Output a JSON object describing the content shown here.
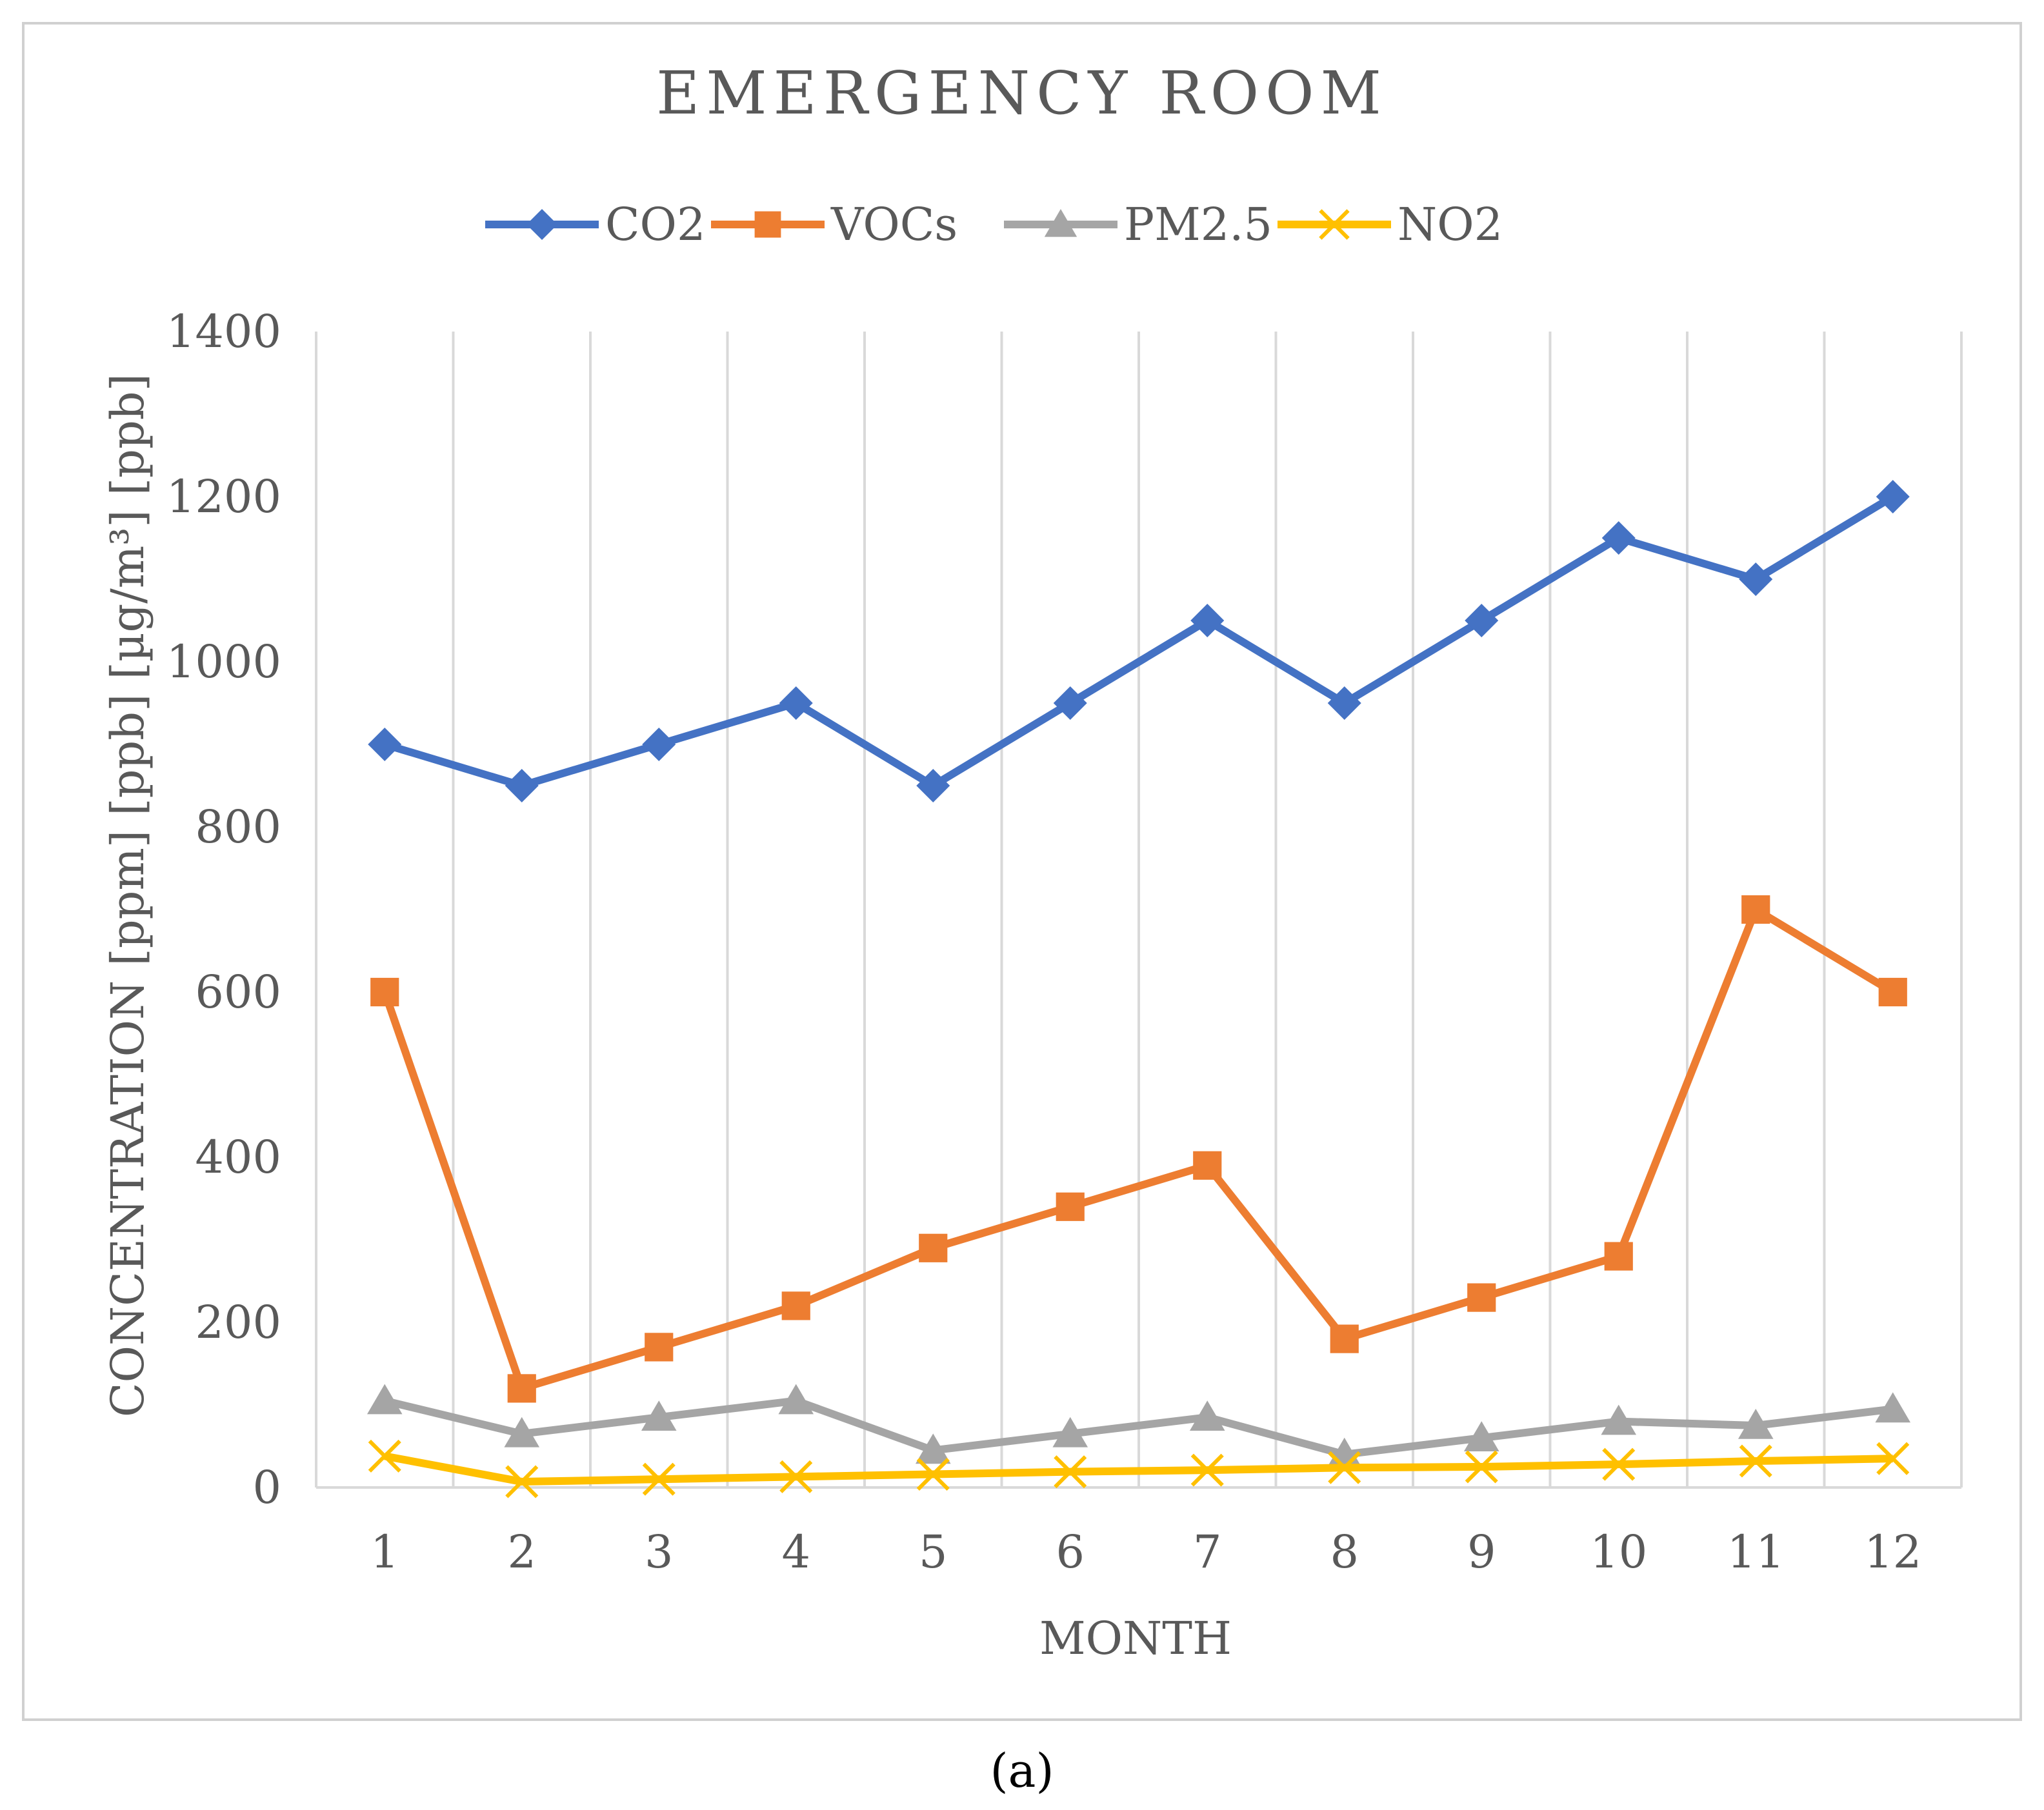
{
  "chart_data": {
    "type": "line",
    "title": "EMERGENCY ROOM",
    "xlabel": "MONTH",
    "ylabel": "CONCENTRATION [ppm] [ppb] [µg/m³] [ppb]",
    "categories": [
      "1",
      "2",
      "3",
      "4",
      "5",
      "6",
      "7",
      "8",
      "9",
      "10",
      "11",
      "12"
    ],
    "ylim": [
      0,
      1400
    ],
    "yticks": [
      0,
      200,
      400,
      600,
      800,
      1000,
      1200,
      1400
    ],
    "grid": "vertical",
    "legend_position": "top",
    "series": [
      {
        "name": "CO2",
        "color": "#4472C4",
        "marker": "diamond",
        "values": [
          900,
          850,
          900,
          950,
          850,
          950,
          1050,
          950,
          1050,
          1150,
          1100,
          1200
        ]
      },
      {
        "name": "VOCs",
        "color": "#ED7D31",
        "marker": "square",
        "values": [
          600,
          120,
          170,
          220,
          290,
          340,
          390,
          180,
          230,
          280,
          700,
          600
        ]
      },
      {
        "name": "PM2.5",
        "color": "#A5A5A5",
        "marker": "triangle",
        "values": [
          105,
          65,
          85,
          105,
          45,
          65,
          85,
          40,
          60,
          80,
          75,
          95
        ]
      },
      {
        "name": "NO2",
        "color": "#FFC000",
        "marker": "x",
        "values": [
          38,
          7,
          10,
          13,
          16,
          19,
          21,
          24,
          25,
          28,
          32,
          35
        ]
      }
    ]
  },
  "caption": "(a)"
}
